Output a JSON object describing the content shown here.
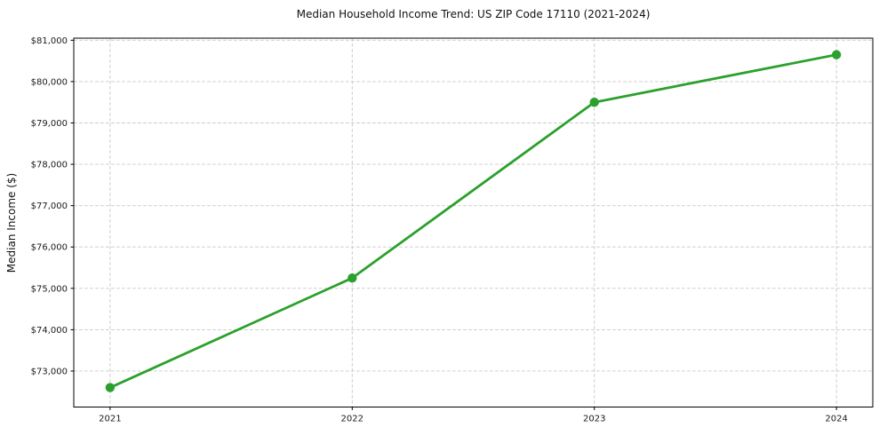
{
  "chart_data": {
    "type": "line",
    "title": "Median Household Income Trend: US ZIP Code 17110 (2021-2024)",
    "x": [
      2021,
      2022,
      2023,
      2024
    ],
    "values": [
      72600,
      75250,
      79500,
      80650
    ],
    "xlabel": "",
    "ylabel": "Median Income ($)",
    "xlim": [
      2020.85,
      2024.15
    ],
    "ylim": [
      72130,
      81050
    ],
    "xticks": [
      2021,
      2022,
      2023,
      2024
    ],
    "xtick_labels": [
      "2021",
      "2022",
      "2023",
      "2024"
    ],
    "yticks": [
      73000,
      74000,
      75000,
      76000,
      77000,
      78000,
      79000,
      80000,
      81000
    ],
    "ytick_labels": [
      "$73,000",
      "$74,000",
      "$75,000",
      "$76,000",
      "$77,000",
      "$78,000",
      "$79,000",
      "$80,000",
      "$81,000"
    ],
    "grid": true,
    "grid_axes": "both",
    "legend": "none",
    "line_color": "#2ca02c",
    "marker": "circle",
    "grid_color": "#c8c8c8",
    "axis_color": "#000000",
    "text_color": "#1a1a1a"
  }
}
